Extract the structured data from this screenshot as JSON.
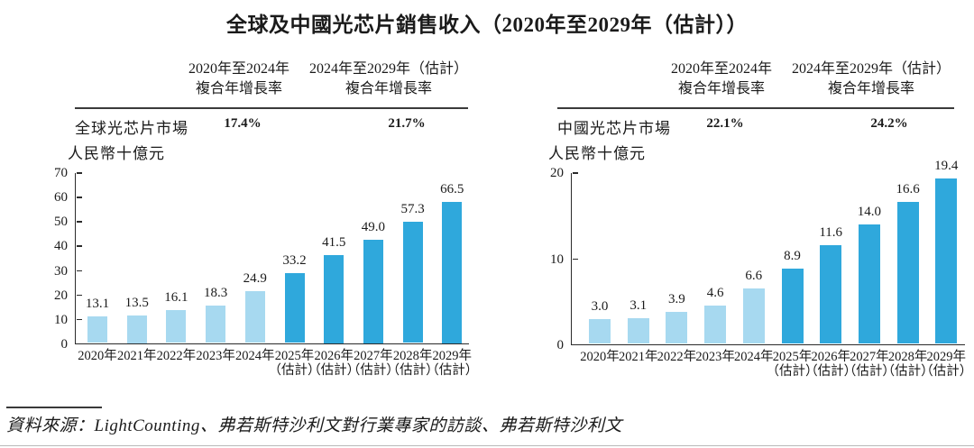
{
  "title": "全球及中國光芯片銷售收入（2020年至2029年（估計））",
  "source": "資料來源：LightCounting、弗若斯特沙利文對行業專家的訪談、弗若斯特沙利文",
  "table_headers": {
    "col1_line1": "2020年至2024年",
    "col1_line2": "複合年增長率",
    "col2_line1": "2024年至2029年（估計）",
    "col2_line2": "複合年增長率"
  },
  "colors": {
    "actual_bar": "#A7D9F0",
    "estimate_bar": "#2FA8DC",
    "axis": "#2b2b2b"
  },
  "chart_data": [
    {
      "type": "bar",
      "market_label": "全球光芯片市場",
      "cagr_2020_2024": "17.4%",
      "cagr_2024_2029": "21.7%",
      "ylabel": "人民幣十億元",
      "xlabel": "",
      "ylim": [
        0,
        70
      ],
      "yticks": [
        0,
        10,
        20,
        30,
        40,
        50,
        60,
        70
      ],
      "grid": false,
      "legend": "none",
      "categories": [
        "2020年",
        "2021年",
        "2022年",
        "2023年",
        "2024年",
        "2025年",
        "2026年",
        "2027年",
        "2028年",
        "2029年"
      ],
      "category_notes": [
        "",
        "",
        "",
        "",
        "",
        "（估計）",
        "（估計）",
        "（估計）",
        "（估計）",
        "（估計）"
      ],
      "values": [
        13.1,
        13.5,
        16.1,
        18.3,
        24.9,
        33.2,
        41.5,
        49.0,
        57.3,
        66.5
      ],
      "value_labels": [
        "13.1",
        "13.5",
        "16.1",
        "18.3",
        "24.9",
        "33.2",
        "41.5",
        "49.0",
        "57.3",
        "66.5"
      ],
      "estimate_start_index": 5
    },
    {
      "type": "bar",
      "market_label": "中國光芯片市場",
      "cagr_2020_2024": "22.1%",
      "cagr_2024_2029": "24.2%",
      "ylabel": "人民幣十億元",
      "xlabel": "",
      "ylim": [
        0,
        20
      ],
      "yticks": [
        0,
        10,
        20
      ],
      "grid": false,
      "legend": "none",
      "categories": [
        "2020年",
        "2021年",
        "2022年",
        "2023年",
        "2024年",
        "2025年",
        "2026年",
        "2027年",
        "2028年",
        "2029年"
      ],
      "category_notes": [
        "",
        "",
        "",
        "",
        "",
        "（估計）",
        "（估計）",
        "（估計）",
        "（估計）",
        "（估計）"
      ],
      "values": [
        3.0,
        3.1,
        3.9,
        4.6,
        6.6,
        8.9,
        11.6,
        14.0,
        16.6,
        19.4
      ],
      "value_labels": [
        "3.0",
        "3.1",
        "3.9",
        "4.6",
        "6.6",
        "8.9",
        "11.6",
        "14.0",
        "16.6",
        "19.4"
      ],
      "estimate_start_index": 5
    }
  ]
}
